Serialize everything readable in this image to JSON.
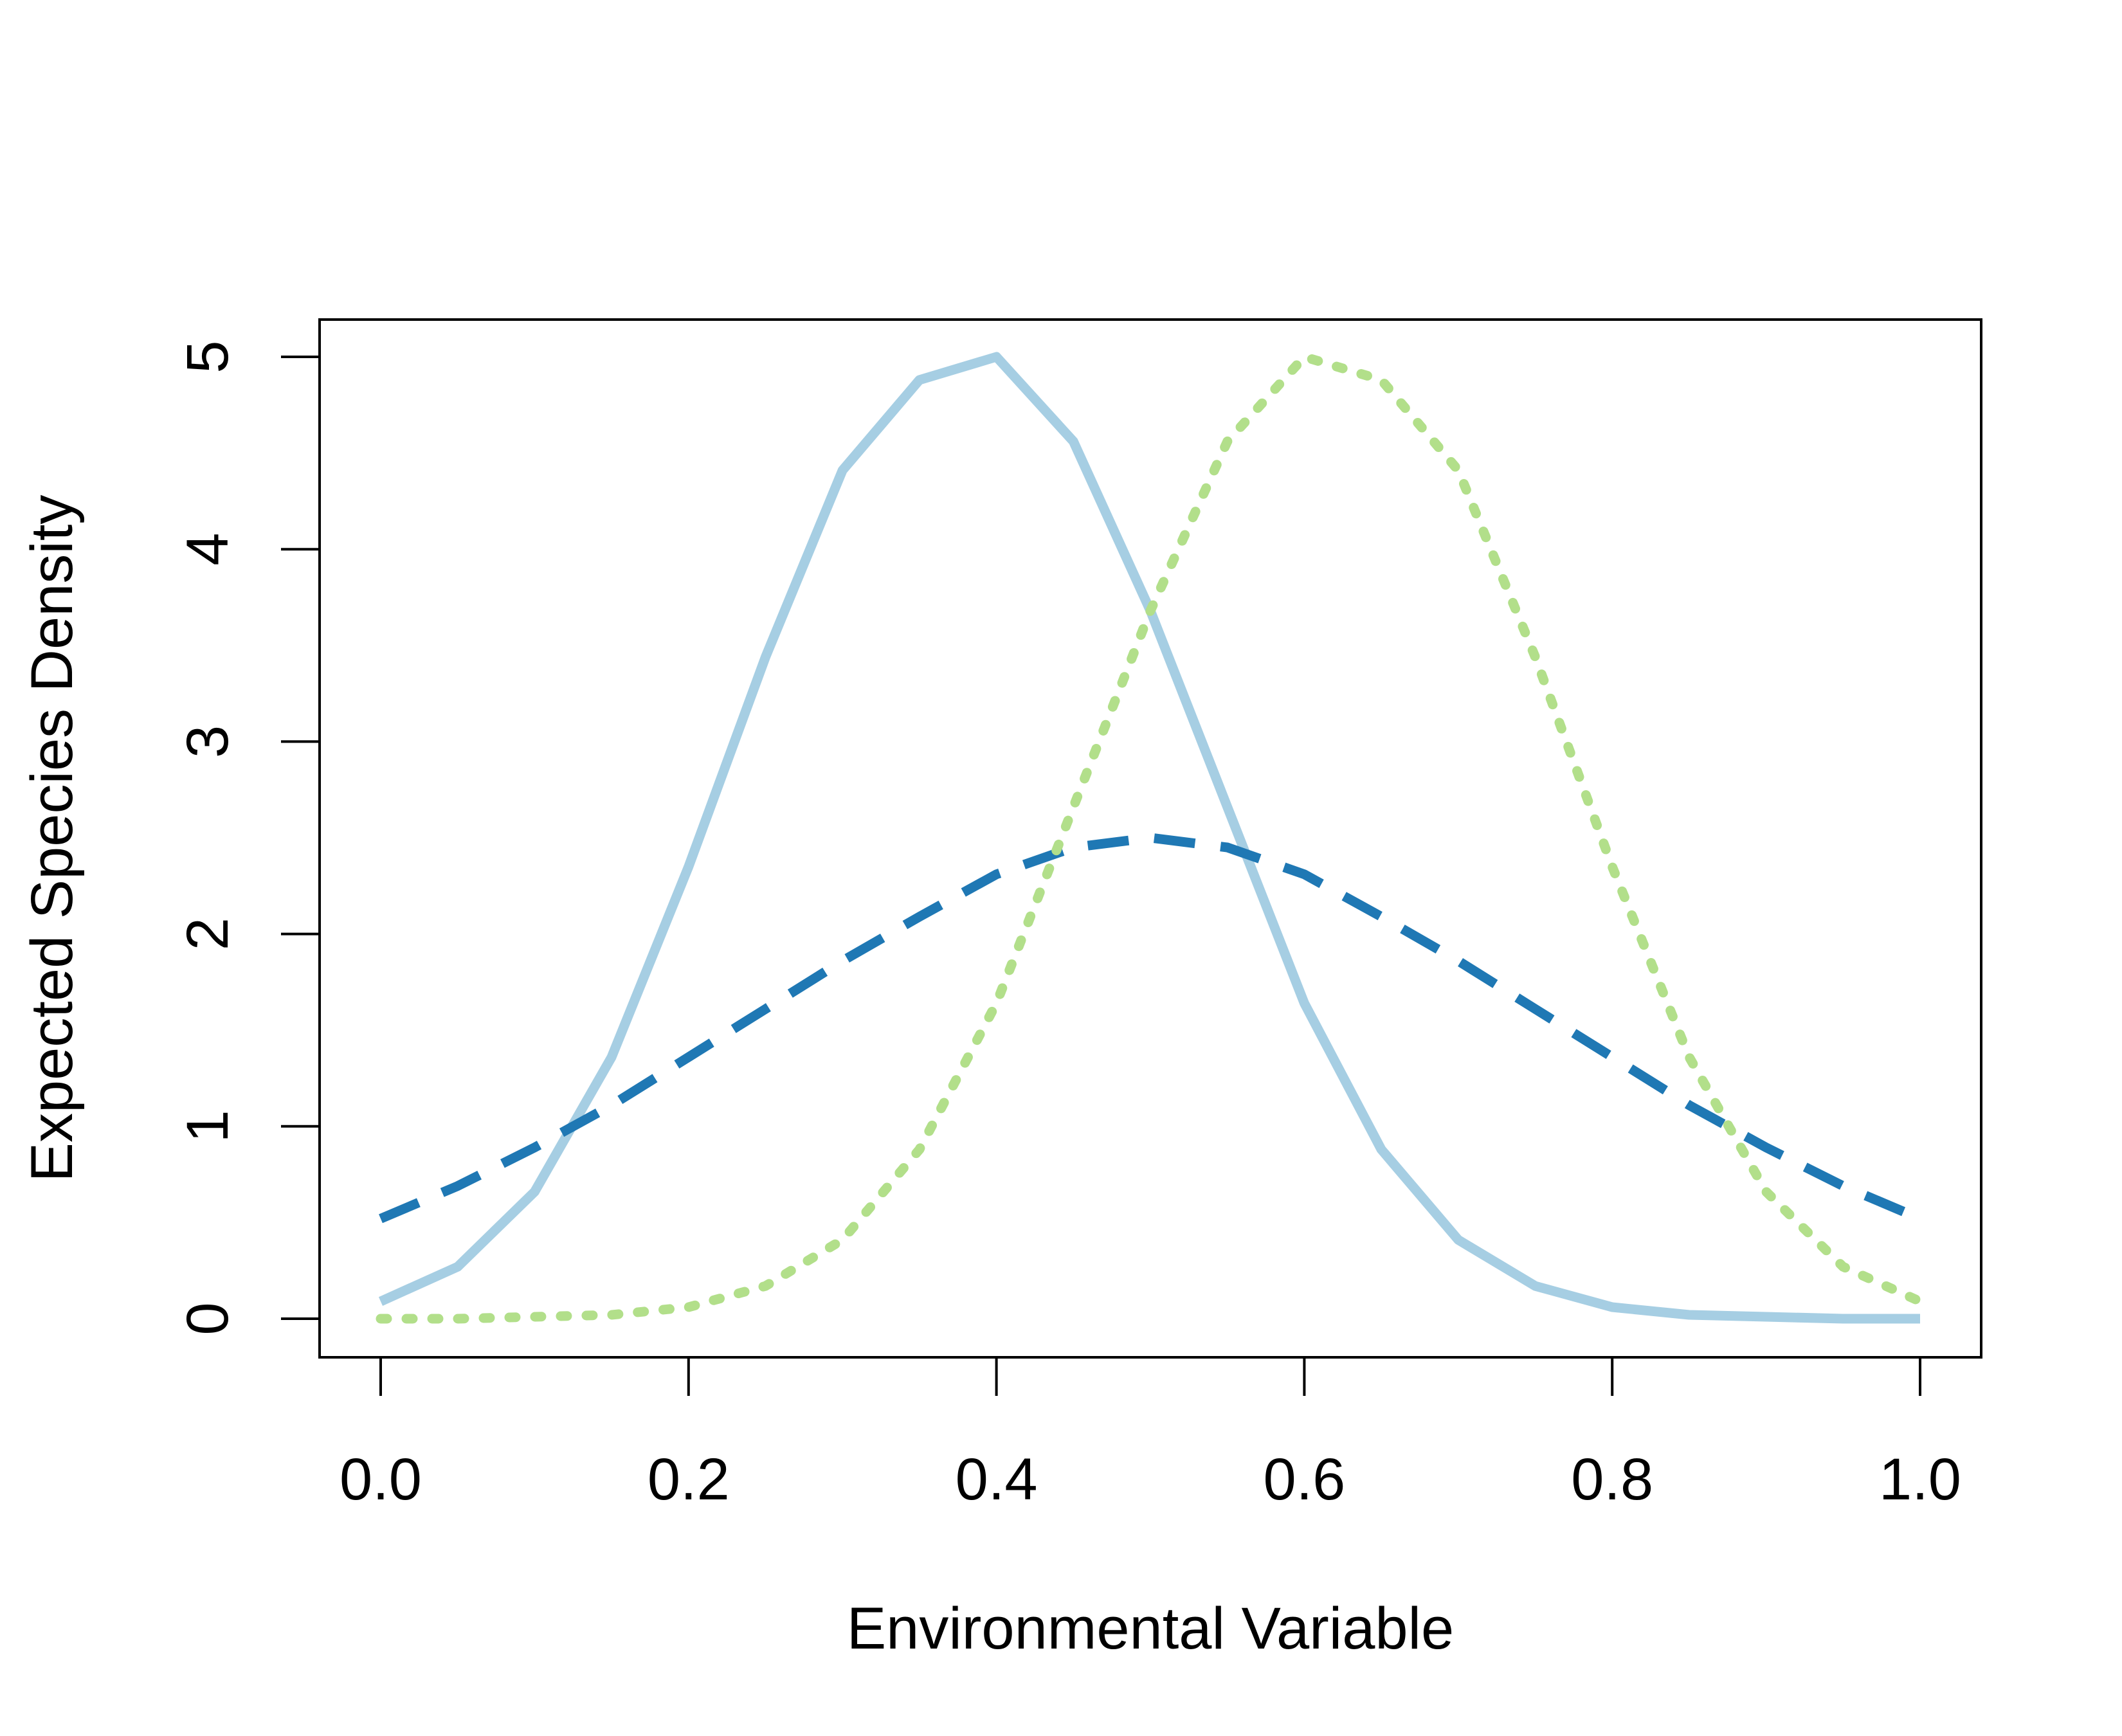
{
  "chart_data": {
    "type": "line",
    "title": "",
    "xlabel": "Environmental Variable",
    "ylabel": "Expected Species Density",
    "xlim": [
      0,
      1
    ],
    "ylim": [
      0,
      5
    ],
    "x_ticks": [
      0.0,
      0.2,
      0.4,
      0.6,
      0.8,
      1.0
    ],
    "x_tick_labels": [
      "0.0",
      "0.2",
      "0.4",
      "0.6",
      "0.8",
      "1.0"
    ],
    "y_ticks": [
      0,
      1,
      2,
      3,
      4,
      5
    ],
    "y_tick_labels": [
      "0",
      "1",
      "2",
      "3",
      "4",
      "5"
    ],
    "grid": false,
    "legend": "none",
    "x": [
      0.0,
      0.05,
      0.1,
      0.15,
      0.2,
      0.25,
      0.3,
      0.35,
      0.4,
      0.45,
      0.5,
      0.55,
      0.6,
      0.65,
      0.7,
      0.75,
      0.8,
      0.85,
      0.9,
      0.95,
      1.0
    ],
    "series": [
      {
        "color": "#A6CEE3",
        "line_style": "solid",
        "values": [
          0.09,
          0.27,
          0.66,
          1.36,
          2.35,
          3.44,
          4.41,
          4.88,
          5.0,
          4.56,
          3.68,
          2.66,
          1.64,
          0.88,
          0.41,
          0.17,
          0.06,
          0.02,
          0.01,
          0.0,
          0.0
        ]
      },
      {
        "color": "#1F78B4",
        "line_style": "dashed",
        "values": [
          0.52,
          0.69,
          0.89,
          1.11,
          1.36,
          1.61,
          1.86,
          2.09,
          2.31,
          2.45,
          2.5,
          2.45,
          2.31,
          2.09,
          1.86,
          1.61,
          1.36,
          1.11,
          0.89,
          0.69,
          0.52
        ]
      },
      {
        "color": "#B2DF8A",
        "line_style": "dotted",
        "values": [
          0.0,
          0.0,
          0.01,
          0.02,
          0.06,
          0.17,
          0.41,
          0.88,
          1.64,
          2.66,
          3.68,
          4.56,
          5.0,
          4.88,
          4.41,
          3.44,
          2.35,
          1.36,
          0.66,
          0.27,
          0.09
        ]
      }
    ]
  }
}
